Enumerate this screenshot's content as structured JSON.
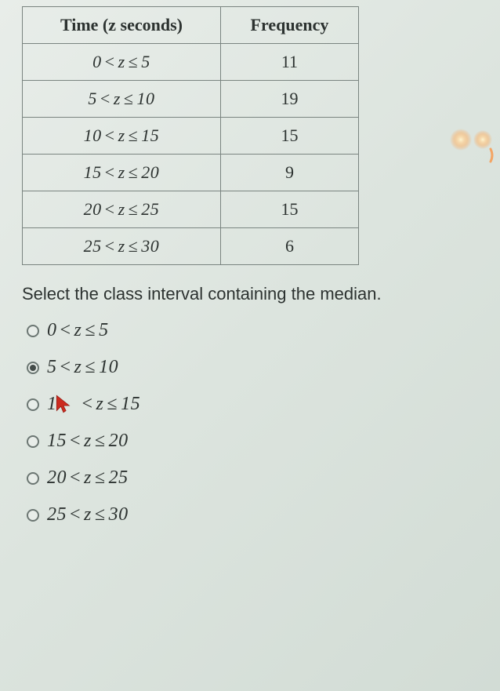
{
  "table": {
    "headers": {
      "col1": "Time (z seconds)",
      "col2": "Frequency"
    },
    "rows": [
      {
        "interval_low": 0,
        "interval_high": 5,
        "freq": 11
      },
      {
        "interval_low": 5,
        "interval_high": 10,
        "freq": 19
      },
      {
        "interval_low": 10,
        "interval_high": 15,
        "freq": 15
      },
      {
        "interval_low": 15,
        "interval_high": 20,
        "freq": 9
      },
      {
        "interval_low": 20,
        "interval_high": 25,
        "freq": 15
      },
      {
        "interval_low": 25,
        "interval_high": 30,
        "freq": 6
      }
    ],
    "border_color": "#7a8480",
    "text_color": "#2c3230",
    "font_size": 22
  },
  "prompt": "Select the class interval containing the median.",
  "options": [
    {
      "low": 0,
      "high": 5,
      "selected": false,
      "has_cursor": false
    },
    {
      "low": 5,
      "high": 10,
      "selected": true,
      "has_cursor": false
    },
    {
      "low": 10,
      "high": 15,
      "selected": false,
      "has_cursor": true
    },
    {
      "low": 15,
      "high": 20,
      "selected": false,
      "has_cursor": false
    },
    {
      "low": 20,
      "high": 25,
      "selected": false,
      "has_cursor": false
    },
    {
      "low": 25,
      "high": 30,
      "selected": false,
      "has_cursor": false
    }
  ],
  "cursor_color": "#cc2b1f",
  "background_gradient": [
    "#e8ede9",
    "#dce4de",
    "#d2dcd5"
  ]
}
